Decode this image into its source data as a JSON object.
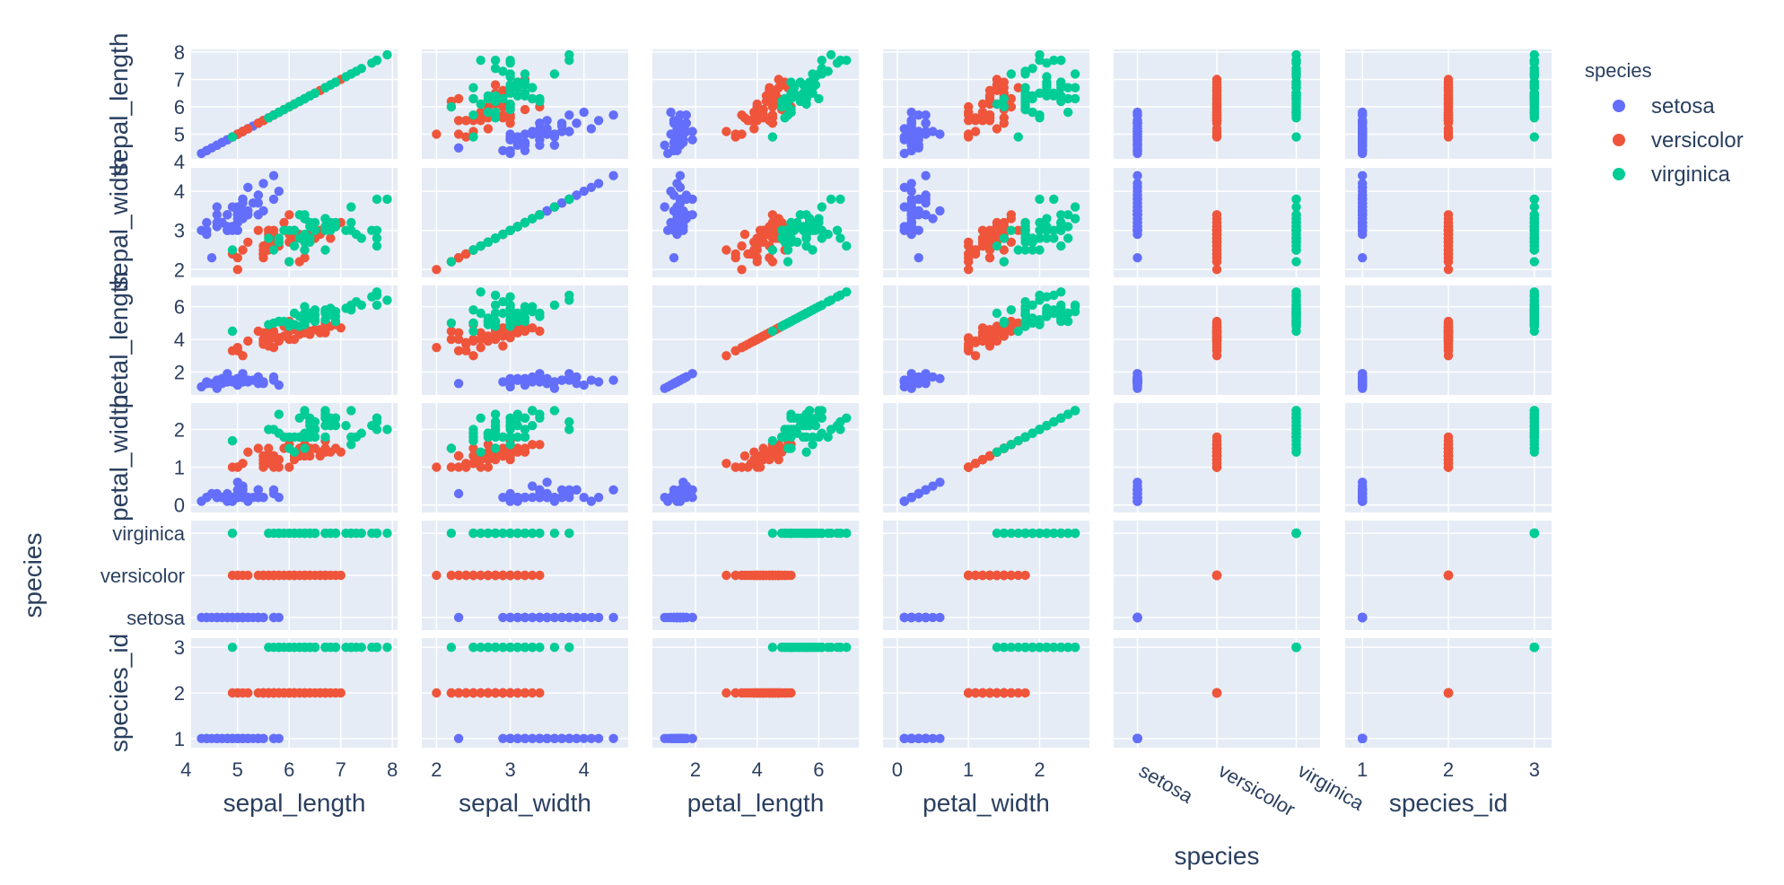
{
  "chart_data": {
    "type": "scatter",
    "title": "",
    "dimensions": [
      "sepal_length",
      "sepal_width",
      "petal_length",
      "petal_width",
      "species",
      "species_id"
    ],
    "axes": {
      "sepal_length": {
        "label": "sepal_length",
        "type": "linear",
        "range": [
          4.1,
          8.1
        ],
        "ticks": [
          4,
          5,
          6,
          7,
          8
        ]
      },
      "sepal_width": {
        "label": "sepal_width",
        "type": "linear",
        "range": [
          1.8,
          4.6
        ],
        "ticks": [
          2,
          3,
          4
        ]
      },
      "petal_length": {
        "label": "petal_length",
        "type": "linear",
        "range": [
          0.6,
          7.3
        ],
        "ticks": [
          2,
          4,
          6
        ]
      },
      "petal_width": {
        "label": "petal_width",
        "type": "linear",
        "range": [
          -0.2,
          2.7
        ],
        "ticks": [
          0,
          1,
          2
        ]
      },
      "species": {
        "label": "species",
        "type": "category",
        "range": [
          -0.3,
          2.3
        ],
        "ticks": [
          "setosa",
          "versicolor",
          "virginica"
        ]
      },
      "species_id": {
        "label": "species_id",
        "type": "linear",
        "range": [
          0.8,
          3.2
        ],
        "ticks": [
          1,
          2,
          3
        ]
      }
    },
    "x_axis_labels": [
      "sepal_length",
      "sepal_width",
      "petal_length",
      "petal_width",
      "species",
      "species_id"
    ],
    "y_axis_labels": [
      "sepal_length",
      "sepal_width",
      "petal_length",
      "petal_width",
      "species",
      "species_id"
    ],
    "legend": {
      "title": "species",
      "position": "right",
      "entries": [
        {
          "name": "setosa",
          "color": "#636efa"
        },
        {
          "name": "versicolor",
          "color": "#ef553b"
        },
        {
          "name": "virginica",
          "color": "#00cc96"
        }
      ]
    },
    "series": [
      {
        "name": "setosa",
        "color": "#636efa",
        "species_id": 1,
        "sepal_length": [
          5.1,
          4.9,
          4.7,
          4.6,
          5.0,
          5.4,
          4.6,
          5.0,
          4.4,
          4.9,
          5.4,
          4.8,
          4.8,
          4.3,
          5.8,
          5.7,
          5.4,
          5.1,
          5.7,
          5.1,
          5.4,
          5.1,
          4.6,
          5.1,
          4.8,
          5.0,
          5.0,
          5.2,
          5.2,
          4.7,
          4.8,
          5.4,
          5.2,
          5.5,
          4.9,
          5.0,
          5.5,
          4.9,
          4.4,
          5.1,
          5.0,
          4.5,
          4.4,
          5.0,
          5.1,
          4.8,
          5.1,
          4.6,
          5.3,
          5.0
        ],
        "sepal_width": [
          3.5,
          3.0,
          3.2,
          3.1,
          3.6,
          3.9,
          3.4,
          3.4,
          2.9,
          3.1,
          3.7,
          3.4,
          3.0,
          3.0,
          4.0,
          4.4,
          3.9,
          3.5,
          3.8,
          3.8,
          3.4,
          3.7,
          3.6,
          3.3,
          3.4,
          3.0,
          3.4,
          3.5,
          3.4,
          3.2,
          3.1,
          3.4,
          4.1,
          4.2,
          3.1,
          3.2,
          3.5,
          3.6,
          3.0,
          3.4,
          3.5,
          2.3,
          3.2,
          3.5,
          3.8,
          3.0,
          3.8,
          3.2,
          3.7,
          3.3
        ],
        "petal_length": [
          1.4,
          1.4,
          1.3,
          1.5,
          1.4,
          1.7,
          1.4,
          1.5,
          1.4,
          1.5,
          1.5,
          1.6,
          1.4,
          1.1,
          1.2,
          1.5,
          1.3,
          1.4,
          1.7,
          1.5,
          1.7,
          1.5,
          1.0,
          1.7,
          1.9,
          1.6,
          1.6,
          1.5,
          1.4,
          1.6,
          1.6,
          1.5,
          1.5,
          1.4,
          1.5,
          1.2,
          1.3,
          1.4,
          1.3,
          1.5,
          1.3,
          1.3,
          1.3,
          1.6,
          1.9,
          1.4,
          1.6,
          1.4,
          1.5,
          1.4
        ],
        "petal_width": [
          0.2,
          0.2,
          0.2,
          0.2,
          0.2,
          0.4,
          0.3,
          0.2,
          0.2,
          0.1,
          0.2,
          0.2,
          0.1,
          0.1,
          0.2,
          0.4,
          0.4,
          0.3,
          0.3,
          0.3,
          0.2,
          0.4,
          0.2,
          0.5,
          0.2,
          0.2,
          0.4,
          0.2,
          0.2,
          0.2,
          0.2,
          0.4,
          0.1,
          0.2,
          0.2,
          0.2,
          0.2,
          0.1,
          0.2,
          0.2,
          0.3,
          0.3,
          0.2,
          0.6,
          0.4,
          0.3,
          0.2,
          0.2,
          0.2,
          0.2
        ]
      },
      {
        "name": "versicolor",
        "color": "#ef553b",
        "species_id": 2,
        "sepal_length": [
          7.0,
          6.4,
          6.9,
          5.5,
          6.5,
          5.7,
          6.3,
          4.9,
          6.6,
          5.2,
          5.0,
          5.9,
          6.0,
          6.1,
          5.6,
          6.7,
          5.6,
          5.8,
          6.2,
          5.6,
          5.9,
          6.1,
          6.3,
          6.1,
          6.4,
          6.6,
          6.8,
          6.7,
          6.0,
          5.7,
          5.5,
          5.5,
          5.8,
          6.0,
          5.4,
          6.0,
          6.7,
          6.3,
          5.6,
          5.5,
          5.5,
          6.1,
          5.8,
          5.0,
          5.6,
          5.7,
          5.7,
          6.2,
          5.1,
          5.7
        ],
        "sepal_width": [
          3.2,
          3.2,
          3.1,
          2.3,
          2.8,
          2.8,
          3.3,
          2.4,
          2.9,
          2.7,
          2.0,
          3.0,
          2.2,
          2.9,
          2.9,
          3.1,
          3.0,
          2.7,
          2.2,
          2.5,
          3.2,
          2.8,
          2.5,
          2.8,
          2.9,
          3.0,
          2.8,
          3.0,
          2.9,
          2.6,
          2.4,
          2.4,
          2.7,
          2.7,
          3.0,
          3.4,
          3.1,
          2.3,
          3.0,
          2.5,
          2.6,
          3.0,
          2.6,
          2.3,
          2.7,
          3.0,
          2.9,
          2.9,
          2.5,
          2.8
        ],
        "petal_length": [
          4.7,
          4.5,
          4.9,
          4.0,
          4.6,
          4.5,
          4.7,
          3.3,
          4.6,
          3.9,
          3.5,
          4.2,
          4.0,
          4.7,
          3.6,
          4.4,
          4.5,
          4.1,
          4.5,
          3.9,
          4.8,
          4.0,
          4.9,
          4.7,
          4.3,
          4.4,
          4.8,
          5.0,
          4.5,
          3.5,
          3.8,
          3.7,
          3.9,
          5.1,
          4.5,
          4.5,
          4.7,
          4.4,
          4.1,
          4.0,
          4.4,
          4.6,
          4.0,
          3.3,
          4.2,
          4.2,
          4.2,
          4.3,
          3.0,
          4.1
        ],
        "petal_width": [
          1.4,
          1.5,
          1.5,
          1.3,
          1.5,
          1.3,
          1.6,
          1.0,
          1.3,
          1.4,
          1.0,
          1.5,
          1.0,
          1.4,
          1.3,
          1.4,
          1.5,
          1.0,
          1.5,
          1.1,
          1.8,
          1.3,
          1.5,
          1.2,
          1.3,
          1.4,
          1.4,
          1.7,
          1.5,
          1.0,
          1.1,
          1.0,
          1.2,
          1.6,
          1.5,
          1.6,
          1.5,
          1.3,
          1.3,
          1.3,
          1.2,
          1.4,
          1.2,
          1.0,
          1.3,
          1.2,
          1.3,
          1.3,
          1.1,
          1.3
        ]
      },
      {
        "name": "virginica",
        "color": "#00cc96",
        "species_id": 3,
        "sepal_length": [
          6.3,
          5.8,
          7.1,
          6.3,
          6.5,
          7.6,
          4.9,
          7.3,
          6.7,
          7.2,
          6.5,
          6.4,
          6.8,
          5.7,
          5.8,
          6.4,
          6.5,
          7.7,
          7.7,
          6.0,
          6.9,
          5.6,
          7.7,
          6.3,
          6.7,
          7.2,
          6.2,
          6.1,
          6.4,
          7.2,
          7.4,
          7.9,
          6.4,
          6.3,
          6.1,
          7.7,
          6.3,
          6.4,
          6.0,
          6.9,
          6.7,
          6.9,
          5.8,
          6.8,
          6.7,
          6.7,
          6.3,
          6.5,
          6.2,
          5.9
        ],
        "sepal_width": [
          3.3,
          2.7,
          3.0,
          2.9,
          3.0,
          3.0,
          2.5,
          2.9,
          2.5,
          3.6,
          3.2,
          2.7,
          3.0,
          2.5,
          2.8,
          3.2,
          3.0,
          3.8,
          2.6,
          2.2,
          3.2,
          2.8,
          2.8,
          2.7,
          3.3,
          3.2,
          2.8,
          3.0,
          2.8,
          3.0,
          2.8,
          3.8,
          2.8,
          2.8,
          2.6,
          3.0,
          3.4,
          3.1,
          3.0,
          3.1,
          3.1,
          3.1,
          2.7,
          3.2,
          3.3,
          3.0,
          2.5,
          3.0,
          3.4,
          3.0
        ],
        "petal_length": [
          6.0,
          5.1,
          5.9,
          5.6,
          5.8,
          6.6,
          4.5,
          6.3,
          5.8,
          6.1,
          5.1,
          5.3,
          5.5,
          5.0,
          5.1,
          5.3,
          5.5,
          6.7,
          6.9,
          5.0,
          5.7,
          4.9,
          6.7,
          4.9,
          5.7,
          6.0,
          4.8,
          4.9,
          5.6,
          5.8,
          6.1,
          6.4,
          5.6,
          5.1,
          5.6,
          6.1,
          5.6,
          5.5,
          4.8,
          5.4,
          5.6,
          5.1,
          5.1,
          5.9,
          5.7,
          5.2,
          5.0,
          5.2,
          5.4,
          5.1
        ],
        "petal_width": [
          2.5,
          1.9,
          2.1,
          1.8,
          2.2,
          2.1,
          1.7,
          1.8,
          1.8,
          2.5,
          2.0,
          1.9,
          2.1,
          2.0,
          2.4,
          2.3,
          1.8,
          2.2,
          2.3,
          1.5,
          2.3,
          2.0,
          2.0,
          1.8,
          2.1,
          1.8,
          1.8,
          1.8,
          2.1,
          1.6,
          1.9,
          2.0,
          2.2,
          1.5,
          1.4,
          2.3,
          2.4,
          1.8,
          1.8,
          2.1,
          2.4,
          2.3,
          1.9,
          2.3,
          2.5,
          2.3,
          1.9,
          2.0,
          2.3,
          1.8
        ]
      }
    ]
  }
}
